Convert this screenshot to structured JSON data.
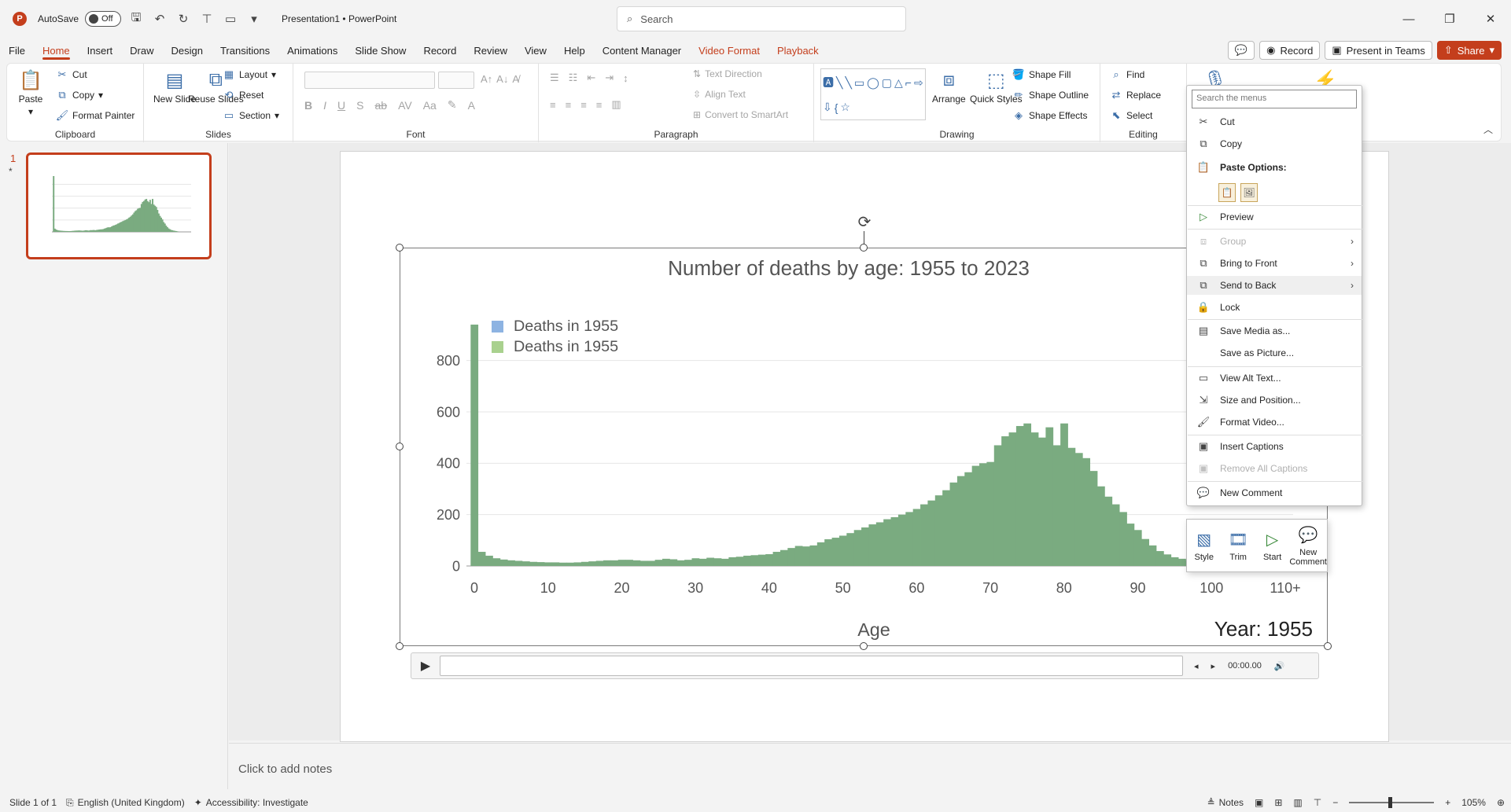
{
  "titlebar": {
    "app_logo": "P",
    "autosave_label": "AutoSave",
    "autosave_state": "Off",
    "doc_title": "Presentation1 • PowerPoint",
    "search_placeholder": "Search"
  },
  "tabs": [
    "File",
    "Home",
    "Insert",
    "Draw",
    "Design",
    "Transitions",
    "Animations",
    "Slide Show",
    "Record",
    "Review",
    "View",
    "Help",
    "Content Manager",
    "Video Format",
    "Playback"
  ],
  "tab_right": {
    "record": "Record",
    "present": "Present in Teams",
    "share": "Share"
  },
  "ribbon": {
    "clipboard": {
      "label": "Clipboard",
      "paste": "Paste",
      "cut": "Cut",
      "copy": "Copy",
      "format_painter": "Format Painter"
    },
    "slides": {
      "label": "Slides",
      "new_slide": "New Slide",
      "reuse_slides": "Reuse Slides",
      "layout": "Layout",
      "reset": "Reset",
      "section": "Section"
    },
    "font": {
      "label": "Font"
    },
    "paragraph": {
      "label": "Paragraph",
      "text_direction": "Text Direction",
      "align_text": "Align Text",
      "convert_smartart": "Convert to SmartArt"
    },
    "drawing": {
      "label": "Drawing",
      "arrange": "Arrange",
      "quick_styles": "Quick Styles",
      "shape_fill": "Shape Fill",
      "shape_outline": "Shape Outline",
      "shape_effects": "Shape Effects"
    },
    "editing": {
      "label": "Editing",
      "find": "Find",
      "replace": "Replace",
      "select": "Select"
    },
    "designer_partial": "igner"
  },
  "slide_panel": {
    "slide_number": "1",
    "star": "*"
  },
  "chart_data": {
    "type": "bar",
    "title": "Number of deaths by age: 1955 to 2023",
    "xlabel": "Age",
    "ylabel": "",
    "legend": [
      "Deaths in 1955",
      "Deaths in 1955"
    ],
    "legend_colors": [
      "#8db3e2",
      "#a9d18e"
    ],
    "bar_color": "#7aab80",
    "year_label": "Year: 1955",
    "ylim": [
      0,
      900
    ],
    "yticks": [
      0,
      200,
      400,
      600,
      800
    ],
    "xticks": [
      "0",
      "10",
      "20",
      "30",
      "40",
      "50",
      "60",
      "70",
      "80",
      "90",
      "100",
      "110+"
    ],
    "x": [
      0,
      1,
      2,
      3,
      4,
      5,
      6,
      7,
      8,
      9,
      10,
      11,
      12,
      13,
      14,
      15,
      16,
      17,
      18,
      19,
      20,
      21,
      22,
      23,
      24,
      25,
      26,
      27,
      28,
      29,
      30,
      31,
      32,
      33,
      34,
      35,
      36,
      37,
      38,
      39,
      40,
      41,
      42,
      43,
      44,
      45,
      46,
      47,
      48,
      49,
      50,
      51,
      52,
      53,
      54,
      55,
      56,
      57,
      58,
      59,
      60,
      61,
      62,
      63,
      64,
      65,
      66,
      67,
      68,
      69,
      70,
      71,
      72,
      73,
      74,
      75,
      76,
      77,
      78,
      79,
      80,
      81,
      82,
      83,
      84,
      85,
      86,
      87,
      88,
      89,
      90,
      91,
      92,
      93,
      94,
      95,
      96,
      97,
      98,
      99,
      100
    ],
    "values": [
      940,
      55,
      40,
      30,
      25,
      22,
      20,
      18,
      16,
      15,
      14,
      14,
      13,
      13,
      14,
      16,
      18,
      20,
      22,
      22,
      24,
      24,
      22,
      20,
      20,
      24,
      28,
      26,
      22,
      24,
      30,
      28,
      32,
      30,
      28,
      34,
      36,
      40,
      42,
      44,
      46,
      55,
      62,
      70,
      78,
      76,
      80,
      92,
      104,
      110,
      118,
      128,
      140,
      150,
      162,
      170,
      182,
      190,
      200,
      210,
      222,
      240,
      255,
      275,
      295,
      325,
      350,
      365,
      390,
      400,
      405,
      470,
      505,
      520,
      545,
      555,
      520,
      500,
      540,
      470,
      555,
      460,
      440,
      420,
      370,
      310,
      270,
      240,
      210,
      165,
      140,
      105,
      80,
      58,
      45,
      34,
      28,
      22,
      18,
      14,
      10
    ]
  },
  "media_bar": {
    "time": "00:00.00"
  },
  "context_menu": {
    "search_placeholder": "Search the menus",
    "items": {
      "cut": "Cut",
      "copy": "Copy",
      "paste_options": "Paste Options:",
      "preview": "Preview",
      "group": "Group",
      "bring_front": "Bring to Front",
      "send_back": "Send to Back",
      "lock": "Lock",
      "save_media": "Save Media as...",
      "save_picture": "Save as Picture...",
      "view_alt": "View Alt Text...",
      "size_position": "Size and Position...",
      "format_video": "Format Video...",
      "insert_captions": "Insert Captions",
      "remove_captions": "Remove All Captions",
      "new_comment": "New Comment"
    }
  },
  "mini_toolbar": {
    "style": "Style",
    "trim": "Trim",
    "start": "Start",
    "new_comment": "New Comment"
  },
  "notes": {
    "placeholder": "Click to add notes"
  },
  "statusbar": {
    "slide_of": "Slide 1 of 1",
    "language": "English (United Kingdom)",
    "accessibility": "Accessibility: Investigate",
    "notes": "Notes",
    "zoom": "105%"
  },
  "colors": {
    "accent": "#c43e1c",
    "icon_blue": "#3c6ea8"
  }
}
